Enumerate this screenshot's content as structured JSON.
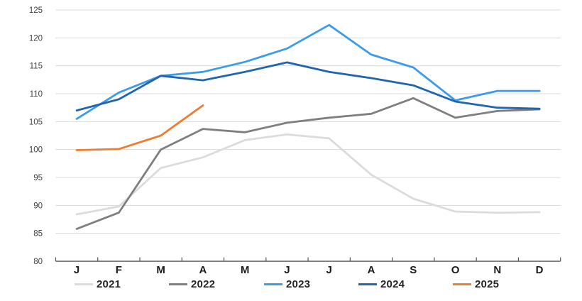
{
  "chart_data": {
    "type": "line",
    "title": "",
    "xlabel": "",
    "ylabel": "",
    "categories": [
      "J",
      "F",
      "M",
      "A",
      "M",
      "J",
      "J",
      "A",
      "S",
      "O",
      "N",
      "D"
    ],
    "y_ticks": [
      80,
      85,
      90,
      95,
      100,
      105,
      110,
      115,
      120,
      125
    ],
    "ylim": [
      80,
      125
    ],
    "grid": true,
    "legend_position": "bottom",
    "series": [
      {
        "name": "2021",
        "color": "#DCDCDC",
        "values": [
          88.4,
          89.8,
          96.7,
          98.6,
          101.7,
          102.7,
          102.0,
          95.5,
          91.2,
          88.9,
          88.7,
          88.8
        ]
      },
      {
        "name": "2022",
        "color": "#7F7F7F",
        "values": [
          85.8,
          88.7,
          100.0,
          103.7,
          103.1,
          104.8,
          105.7,
          106.4,
          109.2,
          105.7,
          106.9,
          107.2
        ]
      },
      {
        "name": "2023",
        "color": "#3D9CE9",
        "values": [
          105.5,
          110.2,
          113.2,
          113.9,
          115.7,
          118.1,
          122.3,
          117.0,
          114.7,
          108.8,
          110.5,
          110.5
        ]
      },
      {
        "name": "2024",
        "color": "#2065AE",
        "values": [
          107.0,
          109.0,
          113.2,
          112.4,
          113.9,
          115.6,
          113.9,
          112.8,
          111.5,
          108.6,
          107.5,
          107.3
        ]
      },
      {
        "name": "2025",
        "color": "#ED7D31",
        "values": [
          99.9,
          100.1,
          102.5,
          107.9
        ]
      }
    ]
  },
  "style": {
    "background_color": "#ffffff",
    "grid_color": "#D9D9D9",
    "axis_line_color": "#595959",
    "y_label_color": "#404040",
    "x_label_color": "#1a1a1a"
  }
}
